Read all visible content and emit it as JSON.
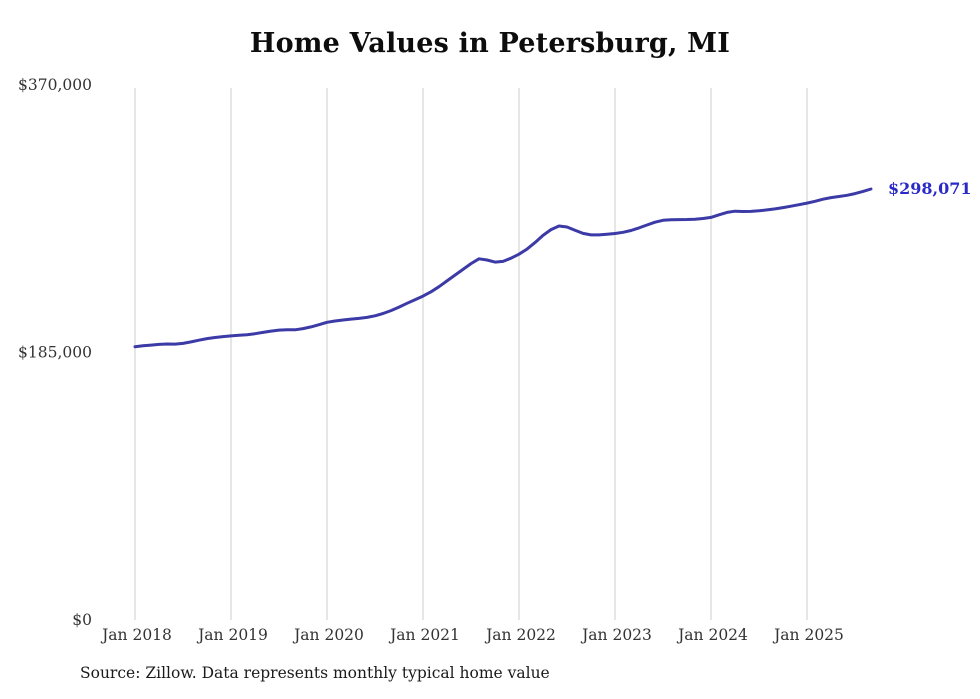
{
  "chart_data": {
    "type": "line",
    "title": "Home Values in Petersburg, MI",
    "source": "Source: Zillow. Data represents monthly typical home value",
    "series_name": "Monthly typical home value",
    "last_value_label": "$298,071",
    "last_value": 298071,
    "ylim": [
      0,
      370000
    ],
    "grid": "vertical-only",
    "legend": "none",
    "line_color": "#3b3aa6",
    "label_color": "#2a2ac8",
    "grid_color": "#cccccc",
    "y_ticks": [
      {
        "value": 0,
        "label": "$0"
      },
      {
        "value": 185000,
        "label": "$185,000"
      },
      {
        "value": 370000,
        "label": "$370,000"
      }
    ],
    "x_tick_labels": [
      "Jan 2018",
      "Jan 2019",
      "Jan 2020",
      "Jan 2021",
      "Jan 2022",
      "Jan 2023",
      "Jan 2024",
      "Jan 2025"
    ],
    "x": [
      "2018-01",
      "2018-02",
      "2018-03",
      "2018-04",
      "2018-05",
      "2018-06",
      "2018-07",
      "2018-08",
      "2018-09",
      "2018-10",
      "2018-11",
      "2018-12",
      "2019-01",
      "2019-02",
      "2019-03",
      "2019-04",
      "2019-05",
      "2019-06",
      "2019-07",
      "2019-08",
      "2019-09",
      "2019-10",
      "2019-11",
      "2019-12",
      "2020-01",
      "2020-02",
      "2020-03",
      "2020-04",
      "2020-05",
      "2020-06",
      "2020-07",
      "2020-08",
      "2020-09",
      "2020-10",
      "2020-11",
      "2020-12",
      "2021-01",
      "2021-02",
      "2021-03",
      "2021-04",
      "2021-05",
      "2021-06",
      "2021-07",
      "2021-08",
      "2021-09",
      "2021-10",
      "2021-11",
      "2021-12",
      "2022-01",
      "2022-02",
      "2022-03",
      "2022-04",
      "2022-05",
      "2022-06",
      "2022-07",
      "2022-08",
      "2022-09",
      "2022-10",
      "2022-11",
      "2022-12",
      "2023-01",
      "2023-02",
      "2023-03",
      "2023-04",
      "2023-05",
      "2023-06",
      "2023-07",
      "2023-08",
      "2023-09",
      "2023-10",
      "2023-11",
      "2023-12",
      "2024-01",
      "2024-02",
      "2024-03",
      "2024-04",
      "2024-05",
      "2024-06",
      "2024-07",
      "2024-08",
      "2024-09",
      "2024-10",
      "2024-11",
      "2024-12",
      "2025-01",
      "2025-02",
      "2025-03",
      "2025-04",
      "2025-05",
      "2025-06",
      "2025-07",
      "2025-08",
      "2025-09"
    ],
    "values": [
      189000,
      189600,
      190100,
      190600,
      190900,
      190800,
      191300,
      192300,
      193500,
      194600,
      195400,
      196000,
      196500,
      196900,
      197300,
      198000,
      198900,
      199800,
      200500,
      200800,
      200700,
      201500,
      202700,
      204200,
      205900,
      206800,
      207500,
      208100,
      208600,
      209300,
      210400,
      212000,
      214000,
      216400,
      219000,
      221500,
      224000,
      227000,
      230500,
      234500,
      238500,
      242500,
      246500,
      249800,
      249000,
      247500,
      248000,
      250200,
      253000,
      256500,
      261000,
      266000,
      270000,
      272500,
      271800,
      269500,
      267400,
      266300,
      266300,
      266800,
      267300,
      268100,
      269400,
      271200,
      273200,
      275100,
      276400,
      276800,
      276900,
      277000,
      277200,
      277700,
      278400,
      280200,
      281900,
      282700,
      282500,
      282600,
      283000,
      283600,
      284300,
      285200,
      286200,
      287200,
      288300,
      289600,
      291000,
      292100,
      292900,
      293700,
      294900,
      296400,
      298071
    ]
  }
}
